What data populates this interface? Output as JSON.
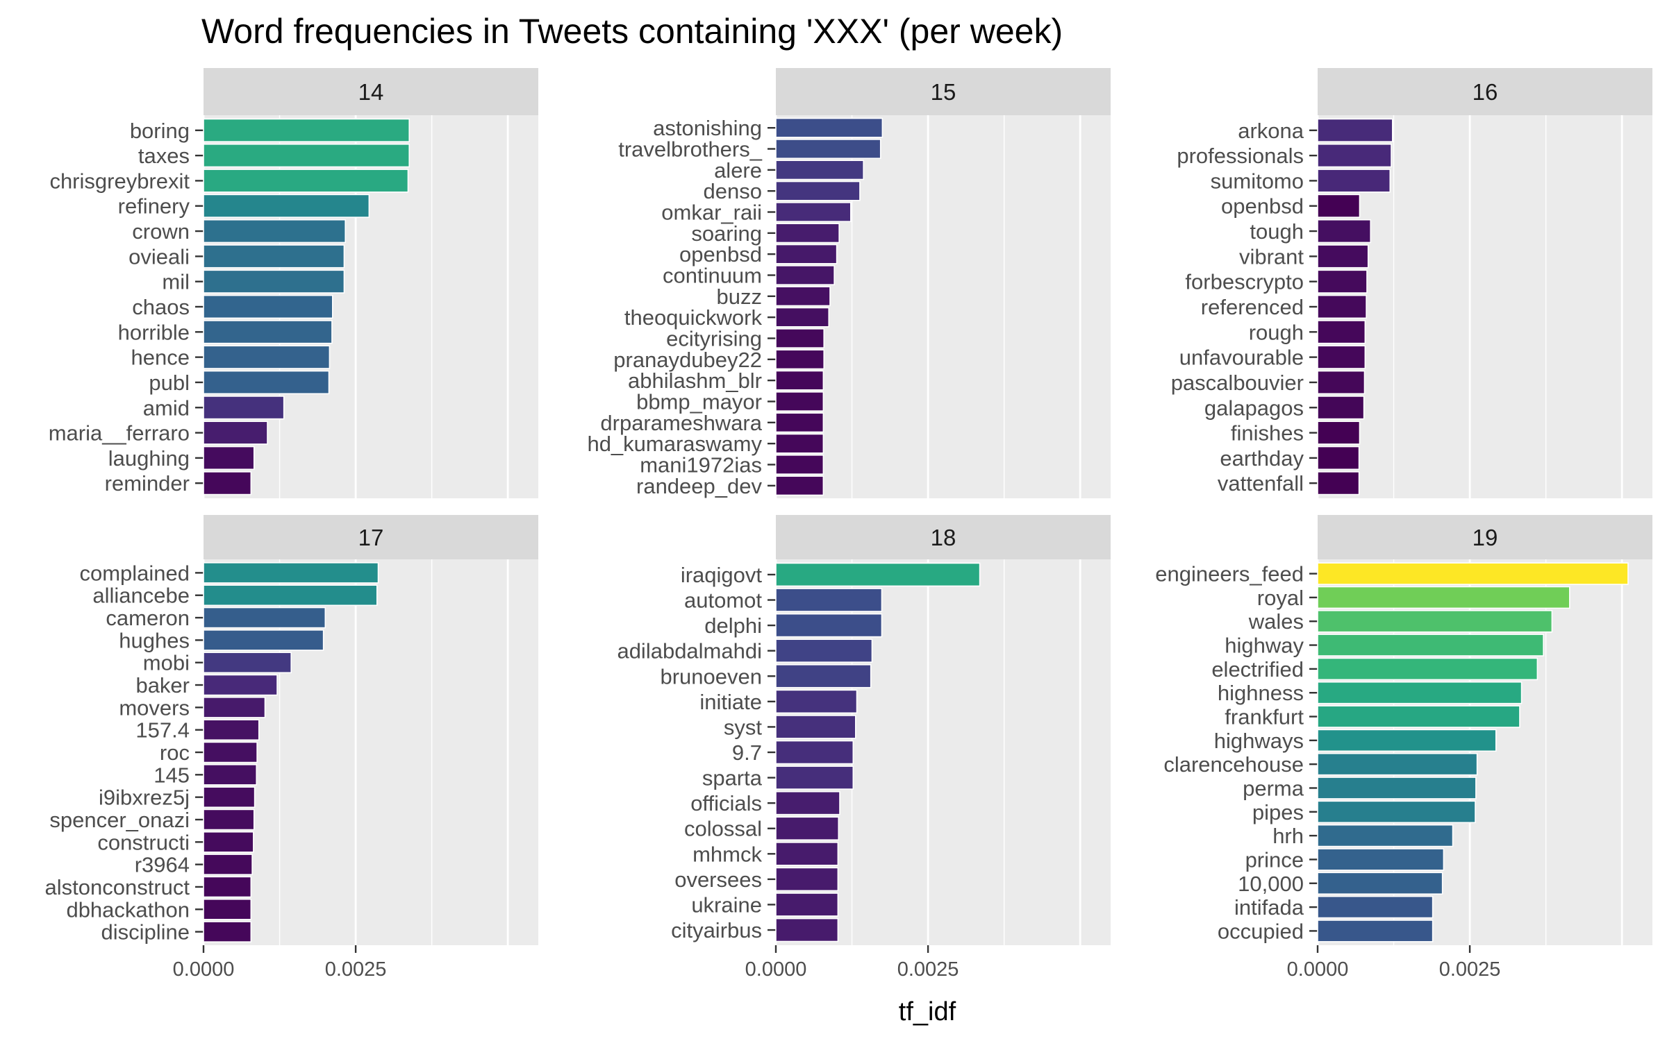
{
  "chart_data": {
    "type": "bar",
    "orientation": "horizontal",
    "title": "Word frequencies in Tweets containing 'XXX' (per week)",
    "xlabel": "tf_idf",
    "ylabel": "",
    "xlim": [
      0,
      0.0055
    ],
    "x_ticks": [
      0.0,
      0.0025
    ],
    "x_tick_labels": [
      "0.0000",
      "0.0025"
    ],
    "color_scale": "viridis",
    "color_domain": [
      0.0007,
      0.0051
    ],
    "legend": "none",
    "grid": true,
    "panels": [
      {
        "label": "14",
        "categories": [
          "boring",
          "taxes",
          "chrisgreybrexit",
          "refinery",
          "crown",
          "ovieali",
          "mil",
          "chaos",
          "horrible",
          "hence",
          "publ",
          "amid",
          "maria__ferraro",
          "laughing",
          "reminder"
        ],
        "values": [
          0.00338,
          0.00338,
          0.00336,
          0.00272,
          0.00233,
          0.00231,
          0.00231,
          0.00212,
          0.00211,
          0.00207,
          0.00206,
          0.00132,
          0.00105,
          0.00083,
          0.00078
        ]
      },
      {
        "label": "15",
        "categories": [
          "astonishing",
          "travelbrothers_",
          "alere",
          "denso",
          "omkar_raii",
          "soaring",
          "openbsd",
          "continuum",
          "buzz",
          "theoquickwork",
          "ecityrising",
          "pranaydubey22",
          "abhilashm_blr",
          "bbmp_mayor",
          "drparameshwara",
          "hd_kumaraswamy",
          "mani1972ias",
          "randeep_dev"
        ],
        "values": [
          0.00175,
          0.00172,
          0.00144,
          0.00138,
          0.00123,
          0.00104,
          0.001,
          0.00096,
          0.00089,
          0.00087,
          0.00079,
          0.00079,
          0.00078,
          0.00078,
          0.00078,
          0.00078,
          0.00078,
          0.00078
        ]
      },
      {
        "label": "16",
        "categories": [
          "arkona",
          "professionals",
          "sumitomo",
          "openbsd",
          "tough",
          "vibrant",
          "forbescrypto",
          "referenced",
          "rough",
          "unfavourable",
          "pascalbouvier",
          "galapagos",
          "finishes",
          "earthday",
          "vattenfall"
        ],
        "values": [
          0.00123,
          0.00121,
          0.00119,
          0.00069,
          0.00087,
          0.00083,
          0.00081,
          0.0008,
          0.00078,
          0.00078,
          0.00077,
          0.00076,
          0.00069,
          0.00068,
          0.00068
        ]
      },
      {
        "label": "17",
        "categories": [
          "complained",
          "alliancebe",
          "cameron",
          "hughes",
          "mobi",
          "baker",
          "movers",
          "157.4",
          "roc",
          "145",
          "i9ibxrez5j",
          "spencer_onazi",
          "constructi",
          "r3964",
          "alstonconstruct",
          "dbhackathon",
          "discipline"
        ],
        "values": [
          0.00287,
          0.00285,
          0.002,
          0.00197,
          0.00144,
          0.00121,
          0.00101,
          0.00091,
          0.00088,
          0.00087,
          0.00084,
          0.00083,
          0.00082,
          0.0008,
          0.00078,
          0.00078,
          0.00078
        ]
      },
      {
        "label": "18",
        "categories": [
          "iraqigovt",
          "automot",
          "delphi",
          "adilabdalmahdi",
          "brunoeven",
          "initiate",
          "syst",
          "9.7",
          "sparta",
          "officials",
          "colossal",
          "mhmck",
          "oversees",
          "ukraine",
          "cityairbus"
        ],
        "values": [
          0.00335,
          0.00174,
          0.00174,
          0.00158,
          0.00156,
          0.00133,
          0.00131,
          0.00127,
          0.00127,
          0.00105,
          0.00103,
          0.00102,
          0.00102,
          0.00102,
          0.00102
        ]
      },
      {
        "label": "19",
        "categories": [
          "engineers_feed",
          "royal",
          "wales",
          "highway",
          "electrified",
          "highness",
          "frankfurt",
          "highways",
          "clarencehouse",
          "perma",
          "pipes",
          "hrh",
          "prince",
          "10,000",
          "intifada",
          "occupied"
        ],
        "values": [
          0.0051,
          0.00414,
          0.00385,
          0.00371,
          0.00361,
          0.00335,
          0.00332,
          0.00293,
          0.00262,
          0.0026,
          0.00259,
          0.00222,
          0.00207,
          0.00205,
          0.00189,
          0.00189
        ]
      }
    ]
  }
}
